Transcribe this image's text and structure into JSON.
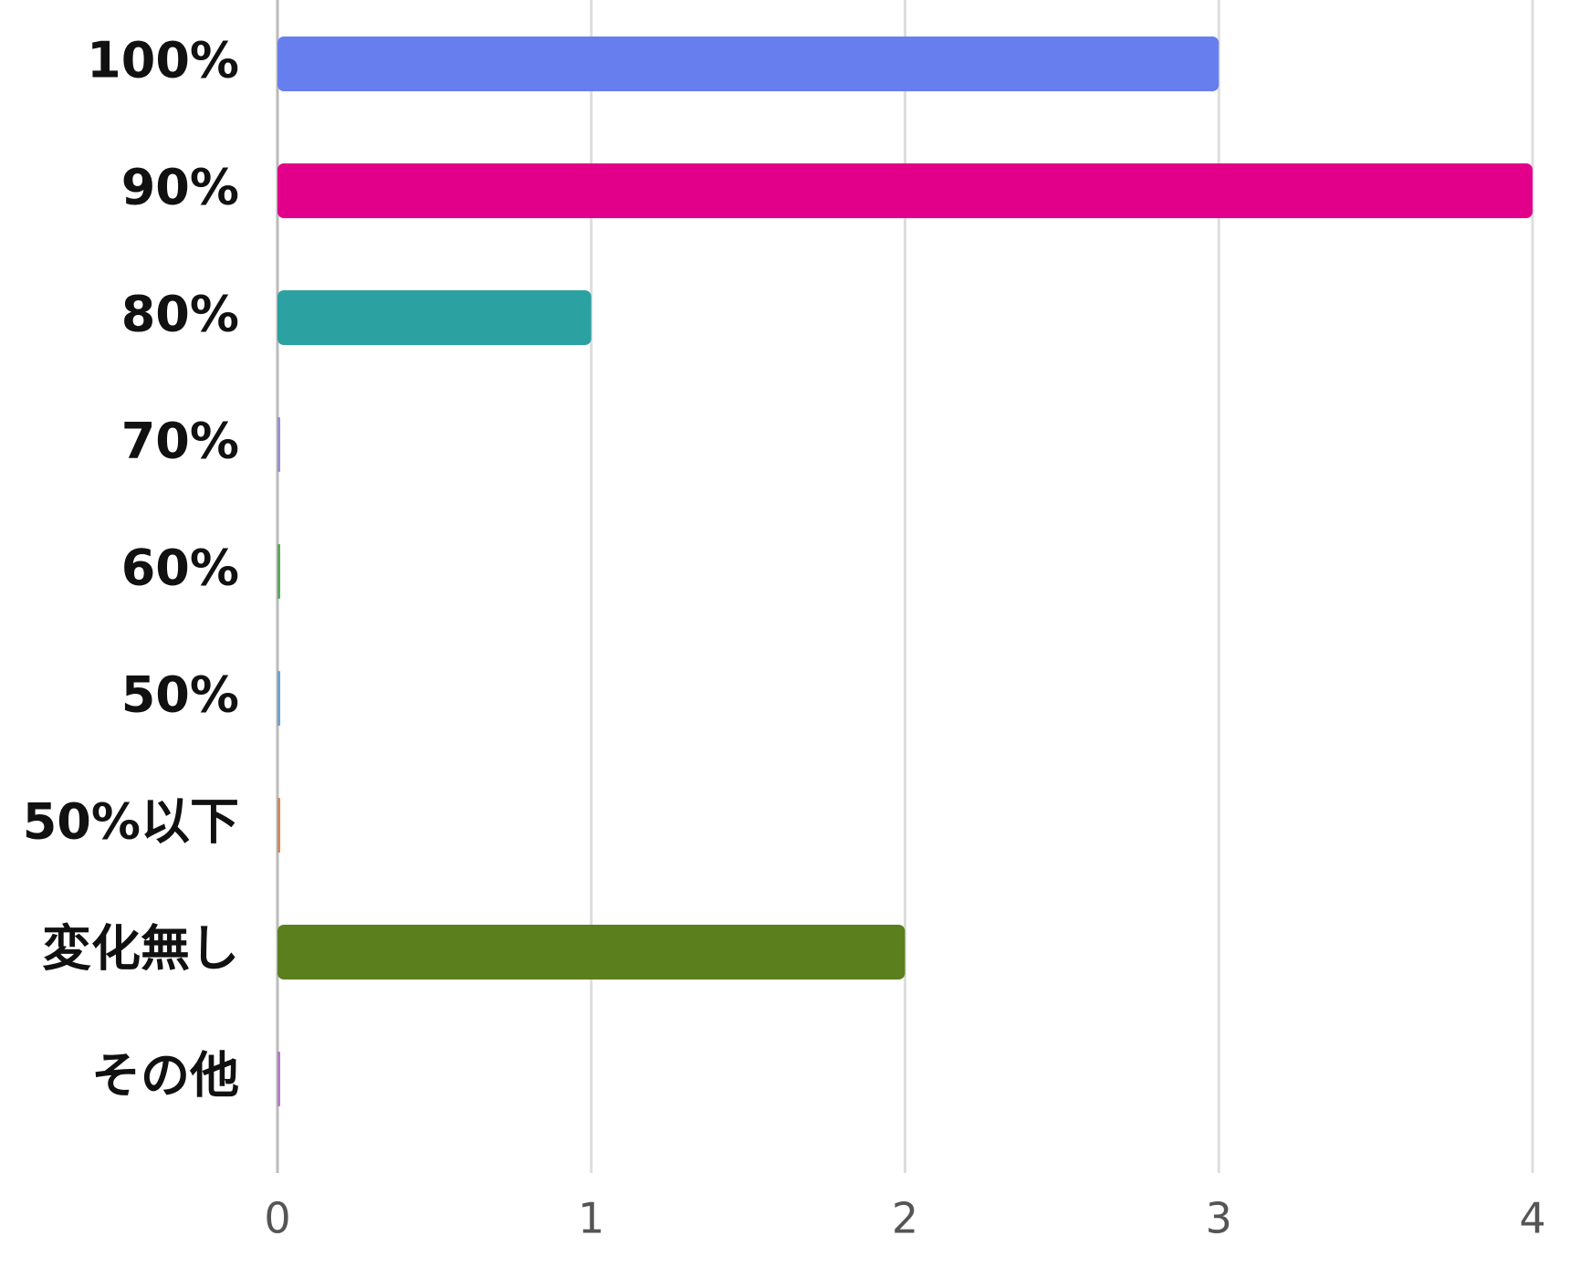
{
  "chart_data": {
    "type": "bar",
    "orientation": "horizontal",
    "categories": [
      "100%",
      "90%",
      "80%",
      "70%",
      "60%",
      "50%",
      "50%以下",
      "変化無し",
      "その他"
    ],
    "values": [
      3,
      4,
      1,
      0,
      0,
      0,
      0,
      2,
      0
    ],
    "colors": [
      "#667eee",
      "#e2008a",
      "#2ca1a1",
      "#9a90d0",
      "#5fa85f",
      "#6fa3d6",
      "#d4875f",
      "#5a7f1c",
      "#b47fc4"
    ],
    "xlim": [
      0,
      4
    ],
    "xticks": [
      0,
      1,
      2,
      3,
      4
    ],
    "grid": true
  }
}
